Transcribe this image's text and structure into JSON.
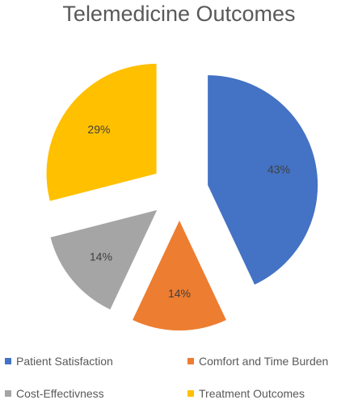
{
  "chart_data": {
    "type": "pie",
    "title": "Telemedicine Outcomes",
    "exploded": true,
    "legend_position": "bottom",
    "slices": [
      {
        "label": "Patient Satisfaction",
        "value": 43,
        "display": "43%",
        "color": "#4472C4"
      },
      {
        "label": "Comfort and Time Burden",
        "value": 14,
        "display": "14%",
        "color": "#ED7D31"
      },
      {
        "label": "Cost-Effectivness",
        "value": 14,
        "display": "14%",
        "color": "#A5A5A5"
      },
      {
        "label": "Treatment Outcomes",
        "value": 29,
        "display": "29%",
        "color": "#FFC000"
      }
    ]
  }
}
